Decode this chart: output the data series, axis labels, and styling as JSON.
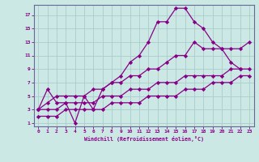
{
  "xlabel": "Windchill (Refroidissement éolien,°C)",
  "ylabel": "",
  "bg_color": "#cce8e4",
  "grid_color": "#aacccc",
  "line_color": "#880088",
  "marker": "D",
  "markersize": 2.2,
  "linewidth": 0.9,
  "xlim": [
    -0.5,
    23.5
  ],
  "ylim": [
    0.5,
    18.5
  ],
  "xticks": [
    0,
    1,
    2,
    3,
    4,
    5,
    6,
    7,
    8,
    9,
    10,
    11,
    12,
    13,
    14,
    15,
    16,
    17,
    18,
    19,
    20,
    21,
    22,
    23
  ],
  "yticks": [
    1,
    3,
    5,
    7,
    9,
    11,
    13,
    15,
    17
  ],
  "lines": [
    {
      "x": [
        0,
        1,
        2,
        3,
        4,
        5,
        6,
        7,
        8,
        9,
        10,
        11,
        12,
        13,
        14,
        15,
        16,
        17,
        18,
        19,
        20,
        21,
        22
      ],
      "y": [
        3,
        6,
        4,
        4,
        1,
        5,
        3,
        6,
        7,
        8,
        10,
        11,
        13,
        16,
        16,
        18,
        18,
        16,
        15,
        13,
        12,
        10,
        9
      ]
    },
    {
      "x": [
        0,
        1,
        2,
        3,
        4,
        5,
        6,
        7,
        8,
        9,
        10,
        11,
        12,
        13,
        14,
        15,
        16,
        17,
        18,
        19,
        20,
        21,
        22,
        23
      ],
      "y": [
        3,
        4,
        5,
        5,
        5,
        5,
        6,
        6,
        7,
        7,
        8,
        8,
        9,
        9,
        10,
        11,
        11,
        13,
        12,
        12,
        12,
        12,
        12,
        13
      ]
    },
    {
      "x": [
        0,
        1,
        2,
        3,
        4,
        5,
        6,
        7,
        8,
        9,
        10,
        11,
        12,
        13,
        14,
        15,
        16,
        17,
        18,
        19,
        20,
        21,
        22,
        23
      ],
      "y": [
        3,
        3,
        3,
        4,
        4,
        4,
        4,
        5,
        5,
        5,
        6,
        6,
        6,
        7,
        7,
        7,
        8,
        8,
        8,
        8,
        8,
        9,
        9,
        9
      ]
    },
    {
      "x": [
        0,
        1,
        2,
        3,
        4,
        5,
        6,
        7,
        8,
        9,
        10,
        11,
        12,
        13,
        14,
        15,
        16,
        17,
        18,
        19,
        20,
        21,
        22,
        23
      ],
      "y": [
        2,
        2,
        2,
        3,
        3,
        3,
        3,
        3,
        4,
        4,
        4,
        4,
        5,
        5,
        5,
        5,
        6,
        6,
        6,
        7,
        7,
        7,
        8,
        8
      ]
    }
  ]
}
